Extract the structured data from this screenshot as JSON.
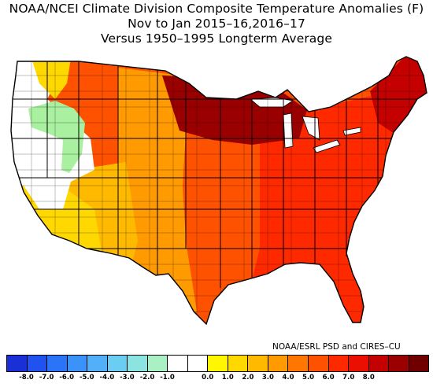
{
  "title": {
    "line1": "NOAA/NCEI Climate Division Composite Temperature Anomalies (F)",
    "line2": "Nov to Jan  2015–16,2016–17",
    "line3": "Versus 1950–1995 Longterm Average"
  },
  "credit": "NOAA/ESRL PSD and CIRES–CU",
  "colorbar": {
    "colors": [
      "#1a2fd6",
      "#1f52ef",
      "#2a74f7",
      "#3b93fa",
      "#52b0f8",
      "#6ccdf2",
      "#8ce4e0",
      "#a9f0c4",
      "#ffffff",
      "#ffffff",
      "#fff700",
      "#ffd800",
      "#ffba00",
      "#ff9a00",
      "#ff7700",
      "#ff5200",
      "#ff2900",
      "#ea0f00",
      "#c40000",
      "#9a0000",
      "#700000"
    ],
    "tick_labels": [
      "-8.0",
      "-7.0",
      "-6.0",
      "-5.0",
      "-4.0",
      "-3.0",
      "-2.0",
      "-1.0",
      "0.0",
      "1.0",
      "2.0",
      "3.0",
      "4.0",
      "5.0",
      "6.0",
      "7.0",
      "8.0"
    ]
  },
  "map_legend": {
    "region_colors": {
      "northwest": "#ffffff",
      "idaho_green": "#a9f0a0",
      "california": "#ffd800",
      "southwest": "#ffba00",
      "plains": "#ff9a00",
      "central": "#ff5200",
      "east": "#ff2900",
      "upper_midwest": "#9a0000",
      "northeast": "#c40000"
    }
  }
}
